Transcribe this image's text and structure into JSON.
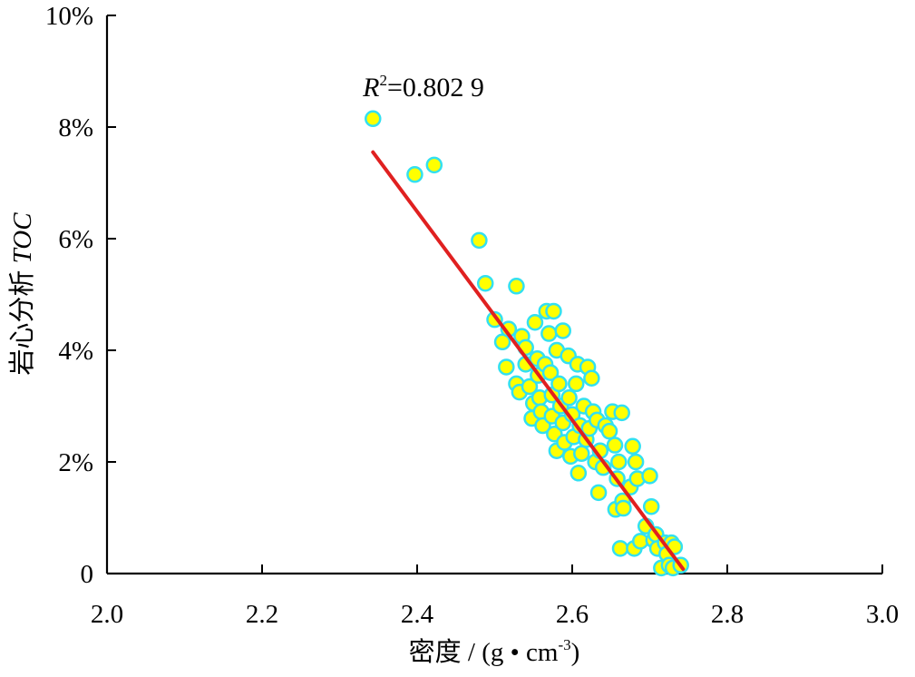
{
  "chart_data": {
    "type": "scatter",
    "title": "",
    "xlabel_main": "密度 / (g • cm",
    "xlabel_sup": "-3",
    "xlabel_tail": ")",
    "ylabel_main": "岩心分析 ",
    "ylabel_italic": "TOC",
    "xlim": [
      2.0,
      3.0
    ],
    "ylim": [
      0,
      10
    ],
    "x_ticks": [
      {
        "value": 2.0,
        "label": "2.0"
      },
      {
        "value": 2.2,
        "label": "2.2"
      },
      {
        "value": 2.4,
        "label": "2.4"
      },
      {
        "value": 2.6,
        "label": "2.6"
      },
      {
        "value": 2.8,
        "label": "2.8"
      },
      {
        "value": 3.0,
        "label": "3.0"
      }
    ],
    "y_ticks": [
      {
        "value": 0,
        "label": "0"
      },
      {
        "value": 2,
        "label": "2%"
      },
      {
        "value": 4,
        "label": "4%"
      },
      {
        "value": 6,
        "label": "6%"
      },
      {
        "value": 8,
        "label": "8%"
      },
      {
        "value": 10,
        "label": "10%"
      }
    ],
    "grid": false,
    "marker_fill": "#ffff00",
    "marker_edge": "#33e0f0",
    "fit_color": "#e02020",
    "annotation": {
      "r_symbol": "R",
      "r_sup": "2",
      "text": "=0.802 9",
      "x": 2.33,
      "y": 8.55
    },
    "fit_line": {
      "x": [
        2.343,
        2.743
      ],
      "y": [
        7.55,
        0.08
      ]
    },
    "points": [
      {
        "x": 2.343,
        "y": 8.15
      },
      {
        "x": 2.397,
        "y": 7.15
      },
      {
        "x": 2.422,
        "y": 7.32
      },
      {
        "x": 2.48,
        "y": 5.97
      },
      {
        "x": 2.488,
        "y": 5.2
      },
      {
        "x": 2.528,
        "y": 5.15
      },
      {
        "x": 2.5,
        "y": 4.55
      },
      {
        "x": 2.51,
        "y": 4.15
      },
      {
        "x": 2.518,
        "y": 4.38
      },
      {
        "x": 2.515,
        "y": 3.7
      },
      {
        "x": 2.528,
        "y": 3.4
      },
      {
        "x": 2.532,
        "y": 3.25
      },
      {
        "x": 2.535,
        "y": 4.25
      },
      {
        "x": 2.54,
        "y": 4.05
      },
      {
        "x": 2.54,
        "y": 3.75
      },
      {
        "x": 2.545,
        "y": 3.35
      },
      {
        "x": 2.548,
        "y": 2.78
      },
      {
        "x": 2.55,
        "y": 3.05
      },
      {
        "x": 2.552,
        "y": 4.5
      },
      {
        "x": 2.555,
        "y": 3.85
      },
      {
        "x": 2.556,
        "y": 3.55
      },
      {
        "x": 2.558,
        "y": 3.15
      },
      {
        "x": 2.56,
        "y": 2.9
      },
      {
        "x": 2.562,
        "y": 2.65
      },
      {
        "x": 2.565,
        "y": 3.75
      },
      {
        "x": 2.567,
        "y": 4.7
      },
      {
        "x": 2.57,
        "y": 4.3
      },
      {
        "x": 2.572,
        "y": 3.6
      },
      {
        "x": 2.574,
        "y": 3.2
      },
      {
        "x": 2.574,
        "y": 2.82
      },
      {
        "x": 2.576,
        "y": 4.7
      },
      {
        "x": 2.577,
        "y": 2.5
      },
      {
        "x": 2.58,
        "y": 4.0
      },
      {
        "x": 2.58,
        "y": 2.2
      },
      {
        "x": 2.583,
        "y": 3.4
      },
      {
        "x": 2.585,
        "y": 3.0
      },
      {
        "x": 2.588,
        "y": 4.35
      },
      {
        "x": 2.588,
        "y": 2.7
      },
      {
        "x": 2.59,
        "y": 2.35
      },
      {
        "x": 2.595,
        "y": 3.9
      },
      {
        "x": 2.596,
        "y": 3.15
      },
      {
        "x": 2.598,
        "y": 2.1
      },
      {
        "x": 2.6,
        "y": 2.85
      },
      {
        "x": 2.602,
        "y": 2.45
      },
      {
        "x": 2.605,
        "y": 3.4
      },
      {
        "x": 2.607,
        "y": 3.75
      },
      {
        "x": 2.608,
        "y": 1.8
      },
      {
        "x": 2.61,
        "y": 2.65
      },
      {
        "x": 2.612,
        "y": 2.15
      },
      {
        "x": 2.615,
        "y": 3.0
      },
      {
        "x": 2.618,
        "y": 2.4
      },
      {
        "x": 2.62,
        "y": 3.7
      },
      {
        "x": 2.622,
        "y": 2.6
      },
      {
        "x": 2.625,
        "y": 3.5
      },
      {
        "x": 2.627,
        "y": 2.9
      },
      {
        "x": 2.63,
        "y": 2.0
      },
      {
        "x": 2.632,
        "y": 2.75
      },
      {
        "x": 2.634,
        "y": 1.45
      },
      {
        "x": 2.636,
        "y": 2.2
      },
      {
        "x": 2.64,
        "y": 1.9
      },
      {
        "x": 2.643,
        "y": 2.65
      },
      {
        "x": 2.648,
        "y": 2.55
      },
      {
        "x": 2.652,
        "y": 2.9
      },
      {
        "x": 2.655,
        "y": 2.3
      },
      {
        "x": 2.656,
        "y": 1.15
      },
      {
        "x": 2.658,
        "y": 1.7
      },
      {
        "x": 2.66,
        "y": 2.0
      },
      {
        "x": 2.662,
        "y": 0.45
      },
      {
        "x": 2.664,
        "y": 2.88
      },
      {
        "x": 2.665,
        "y": 1.3
      },
      {
        "x": 2.666,
        "y": 1.17
      },
      {
        "x": 2.675,
        "y": 1.55
      },
      {
        "x": 2.678,
        "y": 2.28
      },
      {
        "x": 2.68,
        "y": 0.45
      },
      {
        "x": 2.682,
        "y": 2.0
      },
      {
        "x": 2.684,
        "y": 1.7
      },
      {
        "x": 2.688,
        "y": 0.58
      },
      {
        "x": 2.695,
        "y": 0.85
      },
      {
        "x": 2.7,
        "y": 1.75
      },
      {
        "x": 2.702,
        "y": 1.2
      },
      {
        "x": 2.705,
        "y": 0.6
      },
      {
        "x": 2.708,
        "y": 0.7
      },
      {
        "x": 2.71,
        "y": 0.45
      },
      {
        "x": 2.715,
        "y": 0.1
      },
      {
        "x": 2.72,
        "y": 0.55
      },
      {
        "x": 2.722,
        "y": 0.35
      },
      {
        "x": 2.725,
        "y": 0.15
      },
      {
        "x": 2.728,
        "y": 0.55
      },
      {
        "x": 2.73,
        "y": 0.1
      },
      {
        "x": 2.732,
        "y": 0.48
      },
      {
        "x": 2.74,
        "y": 0.15
      }
    ]
  }
}
